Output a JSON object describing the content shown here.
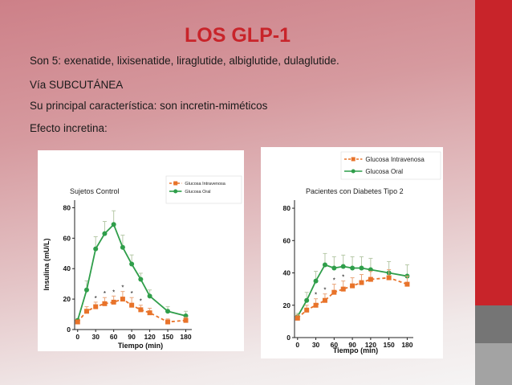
{
  "slide": {
    "title": "LOS GLP-1",
    "lines": [
      "Son 5: exenatide, lixisenatide, liraglutide, albiglutide, dulaglutide.",
      "Vía SUBCUTÁNEA",
      "Su principal característica: son incretin-miméticos",
      "Efecto incretina:"
    ],
    "colors": {
      "title": "#c8242a",
      "side_bar": "#c8242a",
      "oral": "#2f9e4a",
      "iv": "#e8732a"
    }
  },
  "chart_data": [
    {
      "type": "line",
      "title": "Sujetos Control",
      "xlabel": "Tiempo (min)",
      "ylabel": "Insulina (mU/L)",
      "x": [
        0,
        15,
        30,
        45,
        60,
        75,
        90,
        105,
        120,
        150,
        180
      ],
      "xticks": [
        0,
        30,
        60,
        90,
        120,
        150,
        180
      ],
      "yticks": [
        0,
        20,
        40,
        60,
        80
      ],
      "xlim": [
        -5,
        190
      ],
      "ylim": [
        0,
        85
      ],
      "legend_position": "top-right",
      "series": [
        {
          "name": "Glucosa Intravenosa",
          "style": "dashed",
          "marker": "square",
          "values": [
            5,
            12,
            15,
            17,
            18,
            20,
            16,
            13,
            11,
            5,
            6
          ],
          "errors": [
            1,
            3,
            3,
            4,
            4,
            5,
            5,
            3,
            3,
            2,
            2
          ],
          "asterisks_at": [
            30,
            45,
            60,
            75,
            90,
            105
          ]
        },
        {
          "name": "Glucosa Oral",
          "style": "solid",
          "marker": "circle",
          "values": [
            6,
            26,
            53,
            63,
            69,
            54,
            43,
            33,
            22,
            12,
            9
          ],
          "errors": [
            1,
            6,
            8,
            8,
            9,
            8,
            6,
            4,
            4,
            3,
            3
          ]
        }
      ]
    },
    {
      "type": "line",
      "title": "Pacientes con Diabetes Tipo 2",
      "xlabel": "Tiempo (min)",
      "ylabel": "",
      "x": [
        0,
        15,
        30,
        45,
        60,
        75,
        90,
        105,
        120,
        150,
        180
      ],
      "xticks": [
        0,
        30,
        60,
        90,
        120,
        150,
        180
      ],
      "yticks": [
        0,
        20,
        40,
        60,
        80
      ],
      "xlim": [
        -5,
        190
      ],
      "ylim": [
        0,
        85
      ],
      "legend_position": "top-right",
      "series": [
        {
          "name": "Glucosa Intravenosa",
          "style": "dashed",
          "marker": "square",
          "values": [
            12,
            17,
            20,
            23,
            28,
            30,
            32,
            34,
            36,
            37,
            33
          ],
          "errors": [
            2,
            3,
            4,
            4,
            5,
            5,
            5,
            5,
            5,
            5,
            5
          ],
          "asterisks_at": [
            30,
            45,
            60,
            75
          ]
        },
        {
          "name": "Glucosa Oral",
          "style": "solid",
          "marker": "circle",
          "values": [
            13,
            23,
            35,
            45,
            43,
            44,
            43,
            43,
            42,
            40,
            38
          ],
          "errors": [
            2,
            5,
            6,
            7,
            7,
            7,
            7,
            7,
            7,
            7,
            7
          ]
        }
      ]
    }
  ]
}
